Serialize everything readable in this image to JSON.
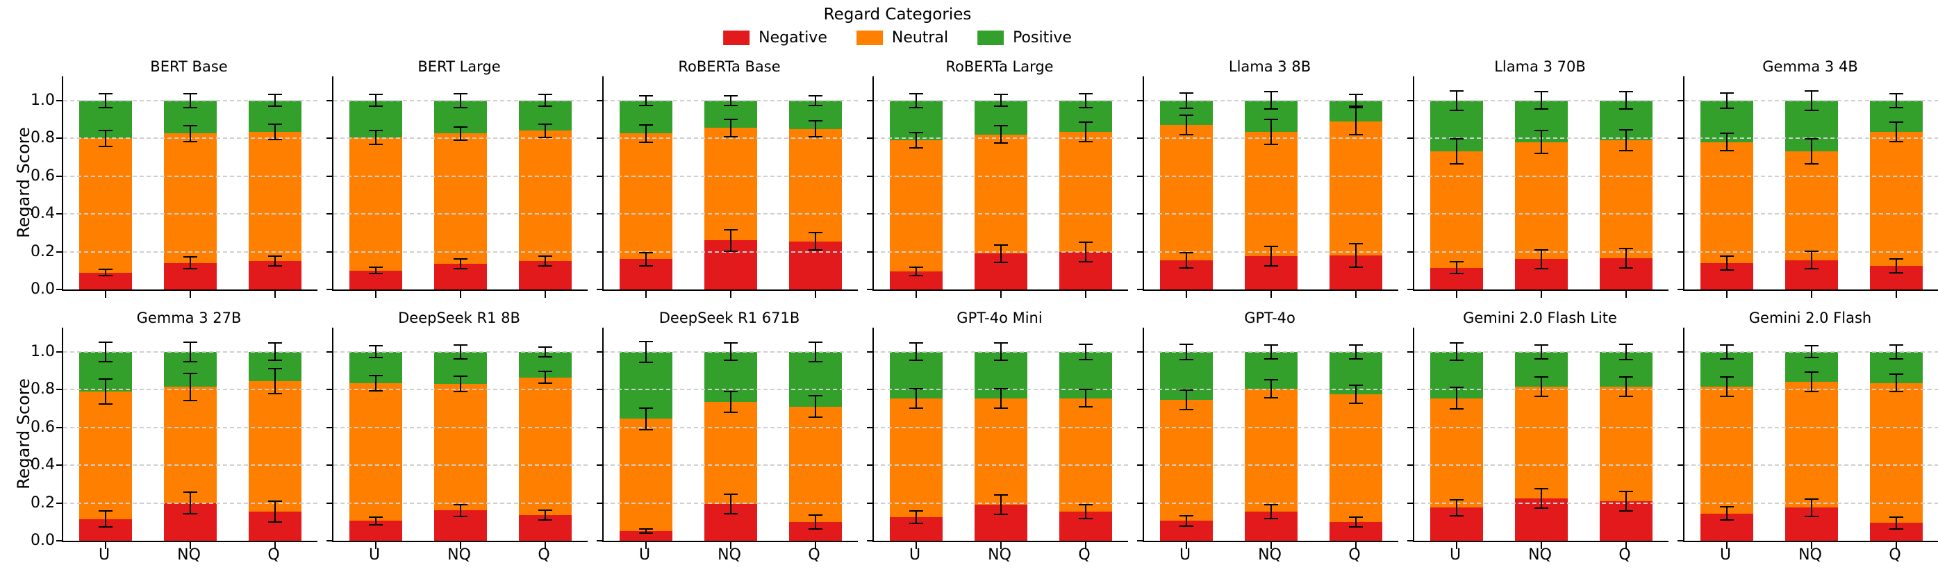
{
  "figure": {
    "legend_title": "Regard Categories",
    "legend": {
      "items": [
        {
          "label": "Negative",
          "color": "#e31a1c"
        },
        {
          "label": "Neutral",
          "color": "#ff7f00"
        },
        {
          "label": "Positive",
          "color": "#33a02c"
        }
      ]
    }
  },
  "chart_data": {
    "type": "bar",
    "stacked": true,
    "categories": [
      "U",
      "NQ",
      "Q"
    ],
    "series_names": [
      "Negative",
      "Neutral",
      "Positive"
    ],
    "colors": {
      "negative": "#e31a1c",
      "neutral": "#ff7f00",
      "positive": "#33a02c"
    },
    "ylabel": "Regard Score",
    "yticks": [
      0.0,
      0.2,
      0.4,
      0.6,
      0.8,
      1.0
    ],
    "ylim": [
      0,
      1.128
    ],
    "grid": true,
    "legend_position": "top-center",
    "panels": [
      {
        "title": "BERT Base",
        "negative": [
          0.09,
          0.14,
          0.15
        ],
        "neutral": [
          0.71,
          0.685,
          0.685
        ],
        "positive": [
          0.2,
          0.175,
          0.165
        ],
        "err_negative": [
          0.02,
          0.035,
          0.03
        ],
        "err_neutral": [
          0.045,
          0.045,
          0.045
        ],
        "err_total": [
          0.04,
          0.04,
          0.035
        ]
      },
      {
        "title": "BERT Large",
        "negative": [
          0.1,
          0.135,
          0.15
        ],
        "neutral": [
          0.705,
          0.69,
          0.69
        ],
        "positive": [
          0.195,
          0.175,
          0.16
        ],
        "err_negative": [
          0.02,
          0.03,
          0.03
        ],
        "err_neutral": [
          0.04,
          0.04,
          0.04
        ],
        "err_total": [
          0.035,
          0.04,
          0.035
        ]
      },
      {
        "title": "RoBERTa Base",
        "negative": [
          0.16,
          0.26,
          0.255
        ],
        "neutral": [
          0.665,
          0.595,
          0.595
        ],
        "positive": [
          0.175,
          0.145,
          0.15
        ],
        "err_negative": [
          0.04,
          0.06,
          0.05
        ],
        "err_neutral": [
          0.05,
          0.05,
          0.045
        ],
        "err_total": [
          0.03,
          0.03,
          0.03
        ]
      },
      {
        "title": "RoBERTa Large",
        "negative": [
          0.095,
          0.19,
          0.2
        ],
        "neutral": [
          0.695,
          0.63,
          0.635
        ],
        "positive": [
          0.21,
          0.18,
          0.165
        ],
        "err_negative": [
          0.025,
          0.05,
          0.055
        ],
        "err_neutral": [
          0.045,
          0.05,
          0.055
        ],
        "err_total": [
          0.04,
          0.035,
          0.04
        ]
      },
      {
        "title": "Llama 3 8B",
        "negative": [
          0.155,
          0.175,
          0.18
        ],
        "neutral": [
          0.715,
          0.66,
          0.71
        ],
        "positive": [
          0.13,
          0.165,
          0.11
        ],
        "err_negative": [
          0.045,
          0.055,
          0.065
        ],
        "err_neutral": [
          0.055,
          0.07,
          0.075
        ],
        "err_total": [
          0.045,
          0.05,
          0.035
        ]
      },
      {
        "title": "Llama 3 70B",
        "negative": [
          0.115,
          0.16,
          0.165
        ],
        "neutral": [
          0.615,
          0.62,
          0.625
        ],
        "positive": [
          0.27,
          0.22,
          0.21
        ],
        "err_negative": [
          0.035,
          0.055,
          0.055
        ],
        "err_neutral": [
          0.07,
          0.065,
          0.06
        ],
        "err_total": [
          0.055,
          0.05,
          0.05
        ]
      },
      {
        "title": "Gemma 3 4B",
        "negative": [
          0.14,
          0.155,
          0.125
        ],
        "neutral": [
          0.64,
          0.575,
          0.71
        ],
        "positive": [
          0.22,
          0.27,
          0.165
        ],
        "err_negative": [
          0.04,
          0.05,
          0.04
        ],
        "err_neutral": [
          0.05,
          0.07,
          0.055
        ],
        "err_total": [
          0.045,
          0.055,
          0.04
        ]
      },
      {
        "title": "Gemma 3 27B",
        "negative": [
          0.115,
          0.2,
          0.155
        ],
        "neutral": [
          0.675,
          0.615,
          0.69
        ],
        "positive": [
          0.21,
          0.185,
          0.155
        ],
        "err_negative": [
          0.045,
          0.06,
          0.06
        ],
        "err_neutral": [
          0.07,
          0.075,
          0.07
        ],
        "err_total": [
          0.055,
          0.055,
          0.05
        ]
      },
      {
        "title": "DeepSeek R1 8B",
        "negative": [
          0.105,
          0.16,
          0.135
        ],
        "neutral": [
          0.73,
          0.67,
          0.73
        ],
        "positive": [
          0.165,
          0.17,
          0.135
        ],
        "err_negative": [
          0.025,
          0.035,
          0.03
        ],
        "err_neutral": [
          0.045,
          0.045,
          0.035
        ],
        "err_total": [
          0.035,
          0.04,
          0.03
        ]
      },
      {
        "title": "DeepSeek R1 671B",
        "negative": [
          0.05,
          0.195,
          0.1
        ],
        "neutral": [
          0.595,
          0.54,
          0.61
        ],
        "positive": [
          0.355,
          0.265,
          0.29
        ],
        "err_negative": [
          0.015,
          0.055,
          0.04
        ],
        "err_neutral": [
          0.06,
          0.06,
          0.06
        ],
        "err_total": [
          0.06,
          0.05,
          0.055
        ]
      },
      {
        "title": "GPT-4o Mini",
        "negative": [
          0.125,
          0.19,
          0.155
        ],
        "neutral": [
          0.63,
          0.565,
          0.6
        ],
        "positive": [
          0.245,
          0.245,
          0.245
        ],
        "err_negative": [
          0.035,
          0.055,
          0.04
        ],
        "err_neutral": [
          0.055,
          0.055,
          0.05
        ],
        "err_total": [
          0.05,
          0.05,
          0.045
        ]
      },
      {
        "title": "GPT-4o",
        "negative": [
          0.105,
          0.155,
          0.1
        ],
        "neutral": [
          0.64,
          0.65,
          0.675
        ],
        "positive": [
          0.255,
          0.195,
          0.225
        ],
        "err_negative": [
          0.03,
          0.04,
          0.03
        ],
        "err_neutral": [
          0.055,
          0.05,
          0.05
        ],
        "err_total": [
          0.045,
          0.04,
          0.04
        ]
      },
      {
        "title": "Gemini 2.0 Flash Lite",
        "negative": [
          0.175,
          0.225,
          0.21
        ],
        "neutral": [
          0.58,
          0.59,
          0.605
        ],
        "positive": [
          0.245,
          0.185,
          0.185
        ],
        "err_negative": [
          0.045,
          0.055,
          0.055
        ],
        "err_neutral": [
          0.06,
          0.055,
          0.055
        ],
        "err_total": [
          0.05,
          0.04,
          0.045
        ]
      },
      {
        "title": "Gemini 2.0 Flash",
        "negative": [
          0.145,
          0.175,
          0.095
        ],
        "neutral": [
          0.67,
          0.665,
          0.74
        ],
        "positive": [
          0.185,
          0.16,
          0.165
        ],
        "err_negative": [
          0.04,
          0.05,
          0.035
        ],
        "err_neutral": [
          0.055,
          0.055,
          0.05
        ],
        "err_total": [
          0.04,
          0.035,
          0.04
        ]
      }
    ]
  }
}
